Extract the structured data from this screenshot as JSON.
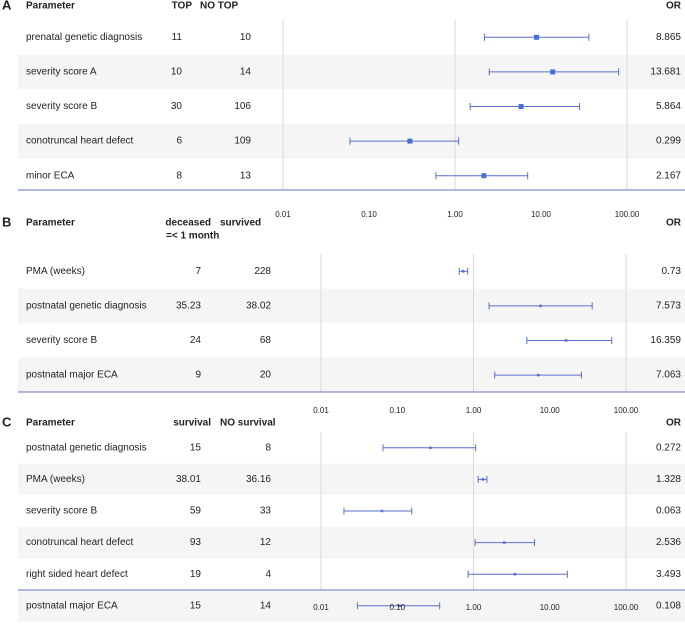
{
  "chart_data": [
    {
      "type": "forest",
      "panel_letter": "A",
      "columns": [
        "Parameter",
        "TOP",
        "NO TOP",
        "OR"
      ],
      "x_scale": "log",
      "xlim": [
        0.01,
        100
      ],
      "x_ticks": [
        "0.01",
        "0.10",
        "1.00",
        "10.00",
        "100.00"
      ],
      "reference_line": 1,
      "rows": [
        {
          "label": "prenatal genetic diagnosis",
          "group1": "11",
          "group2": "10",
          "or_text": "8.865",
          "or": 8.865,
          "lo": 2.2,
          "hi": 36
        },
        {
          "label": "severity score A",
          "group1": "10",
          "group2": "14",
          "or_text": "13.681",
          "or": 13.681,
          "lo": 2.5,
          "hi": 80
        },
        {
          "label": "severity score B",
          "group1": "30",
          "group2": "106",
          "or_text": "5.864",
          "or": 5.864,
          "lo": 1.5,
          "hi": 28
        },
        {
          "label": "conotruncal heart defect",
          "group1": "6",
          "group2": "109",
          "or_text": "0.299",
          "or": 0.299,
          "lo": 0.06,
          "hi": 1.1
        },
        {
          "label": "minor ECA",
          "group1": "8",
          "group2": "13",
          "or_text": "2.167",
          "or": 2.167,
          "lo": 0.6,
          "hi": 7
        }
      ]
    },
    {
      "type": "forest",
      "panel_letter": "B",
      "columns": [
        "Parameter",
        "deceased",
        "survived",
        "OR"
      ],
      "column_sublabel": "=< 1 month",
      "x_scale": "log",
      "xlim": [
        0.01,
        100
      ],
      "x_ticks": [
        "0.01",
        "0.10",
        "1.00",
        "10.00",
        "100.00"
      ],
      "reference_line": 1,
      "rows": [
        {
          "label": "PMA (weeks)",
          "group1": "7",
          "group2": "228",
          "or_text": "0.73",
          "or": 0.73,
          "lo": 0.65,
          "hi": 0.84
        },
        {
          "label": "postnatal genetic diagnosis",
          "group1": "35.23",
          "group2": "38.02",
          "or_text": "7.573",
          "or": 7.573,
          "lo": 1.6,
          "hi": 36
        },
        {
          "label": "severity score B",
          "group1": "24",
          "group2": "68",
          "or_text": "16.359",
          "or": 16.359,
          "lo": 5,
          "hi": 65
        },
        {
          "label": "postnatal major ECA",
          "group1": "9",
          "group2": "20",
          "or_text": "7.063",
          "or": 7.063,
          "lo": 1.9,
          "hi": 26
        }
      ]
    },
    {
      "type": "forest",
      "panel_letter": "C",
      "columns": [
        "Parameter",
        "survival",
        "NO survival",
        "OR"
      ],
      "x_scale": "log",
      "xlim": [
        0.01,
        100
      ],
      "x_ticks": [
        "0.01",
        "0.10",
        "1.00",
        "10.00",
        "100.00"
      ],
      "reference_line": 1,
      "rows": [
        {
          "label": "postnatal genetic diagnosis",
          "group1": "15",
          "group2": "8",
          "or_text": "0.272",
          "or": 0.272,
          "lo": 0.065,
          "hi": 1.07
        },
        {
          "label": "PMA (weeks)",
          "group1": "38.01",
          "group2": "36.16",
          "or_text": "1.328",
          "or": 1.328,
          "lo": 1.15,
          "hi": 1.5
        },
        {
          "label": "severity score B",
          "group1": "59",
          "group2": "33",
          "or_text": "0.063",
          "or": 0.063,
          "lo": 0.02,
          "hi": 0.155
        },
        {
          "label": "conotruncal heart defect",
          "group1": "93",
          "group2": "12",
          "or_text": "2.536",
          "or": 2.536,
          "lo": 1.05,
          "hi": 6.3
        },
        {
          "label": "right sided heart defect",
          "group1": "19",
          "group2": "4",
          "or_text": "3.493",
          "or": 3.493,
          "lo": 0.85,
          "hi": 17
        },
        {
          "label": "postnatal major ECA",
          "group1": "15",
          "group2": "14",
          "or_text": "0.108",
          "or": 0.108,
          "lo": 0.03,
          "hi": 0.36
        }
      ]
    }
  ],
  "colors": {
    "marker": "#4a6fd6",
    "errorbar": "#5a6fc9",
    "row_stripe": "#f5f5f5",
    "gridline": "#d9d9d9",
    "axis_line": "#6a74c8",
    "text": "#222222"
  }
}
